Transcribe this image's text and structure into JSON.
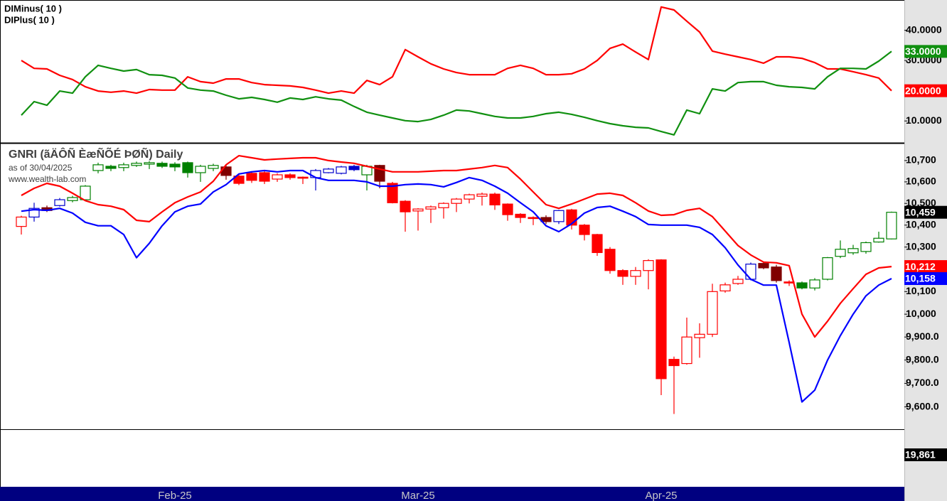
{
  "chart_data": [
    {
      "type": "line",
      "ylim": [
        3,
        50
      ],
      "yticks": [
        {
          "value": 40,
          "label": "40.0000"
        },
        {
          "value": 30,
          "label": "30.0000"
        },
        {
          "value": 20,
          "label": "20.0000"
        },
        {
          "value": 10,
          "label": "10.0000"
        }
      ],
      "series": [
        {
          "name": "DIMinus( 10 )",
          "color": "#ff0000",
          "last_label": "20.0000",
          "values": [
            30.0,
            27.4,
            27.2,
            25.1,
            23.7,
            21.3,
            19.9,
            19.5,
            19.9,
            19.2,
            20.4,
            20.2,
            20.2,
            24.6,
            23.0,
            22.5,
            23.9,
            23.9,
            22.7,
            22.0,
            21.8,
            21.6,
            21.1,
            20.2,
            19.2,
            19.9,
            19.2,
            23.4,
            22.0,
            24.6,
            33.6,
            31.2,
            28.9,
            27.2,
            26.0,
            25.3,
            25.3,
            25.3,
            27.4,
            28.4,
            27.4,
            25.3,
            25.3,
            25.6,
            27.2,
            30.0,
            34.0,
            35.4,
            32.8,
            30.3,
            47.7,
            46.7,
            43.0,
            39.4,
            33.1,
            32.1,
            31.2,
            30.3,
            29.1,
            31.2,
            31.2,
            30.7,
            29.3,
            27.2,
            27.2,
            26.3,
            25.3,
            24.2,
            20.0
          ]
        },
        {
          "name": "DIPlus( 10 )",
          "color": "#109010",
          "last_label": "33.0000",
          "values": [
            11.9,
            16.4,
            15.2,
            19.9,
            19.2,
            24.6,
            28.4,
            27.4,
            26.5,
            27.0,
            25.3,
            25.1,
            24.2,
            20.9,
            20.2,
            19.9,
            18.5,
            17.3,
            17.8,
            17.1,
            16.2,
            17.6,
            17.1,
            18.0,
            17.3,
            16.9,
            14.8,
            12.9,
            11.9,
            11.0,
            10.1,
            9.8,
            10.5,
            11.9,
            13.6,
            13.3,
            12.4,
            11.5,
            11.0,
            11.0,
            11.5,
            12.4,
            12.9,
            12.2,
            11.2,
            10.1,
            9.1,
            8.4,
            7.9,
            7.7,
            6.5,
            5.4,
            13.6,
            12.4,
            20.6,
            19.9,
            22.7,
            23.0,
            23.0,
            21.8,
            21.3,
            21.1,
            20.6,
            24.6,
            27.4,
            27.4,
            27.2,
            29.8,
            33.0
          ]
        }
      ]
    },
    {
      "type": "candlestick",
      "title": "GNRI (ãÄÔÑ ÈæÑÕÉ ÞØÑ) Daily",
      "subtitle": "as of 30/04/2025",
      "annotation": "www.wealth-lab.com",
      "log": true,
      "ylim": [
        9506,
        10777
      ],
      "yticks": [
        {
          "value": 10700,
          "label": "10,700"
        },
        {
          "value": 10600,
          "label": "10,600"
        },
        {
          "value": 10500,
          "label": "10,500"
        },
        {
          "value": 10400,
          "label": "10,400"
        },
        {
          "value": 10300,
          "label": "10,300"
        },
        {
          "value": 10200,
          "label": "10,200"
        },
        {
          "value": 10100,
          "label": "10,100"
        },
        {
          "value": 10000,
          "label": "10,000"
        },
        {
          "value": 9900,
          "label": "9,900.0"
        },
        {
          "value": 9800,
          "label": "9,800.0"
        },
        {
          "value": 9700,
          "label": "9,700.0"
        },
        {
          "value": 9600,
          "label": "9,600.0"
        }
      ],
      "categories": [
        null,
        null,
        null,
        null,
        null,
        null,
        null,
        null,
        null,
        null,
        null,
        null,
        "Feb-25",
        null,
        null,
        null,
        null,
        null,
        null,
        null,
        null,
        null,
        null,
        null,
        null,
        null,
        null,
        null,
        null,
        null,
        null,
        "Mar-25",
        null,
        null,
        null,
        null,
        null,
        null,
        null,
        null,
        null,
        null,
        null,
        null,
        null,
        null,
        null,
        null,
        null,
        null,
        "Apr-25",
        null,
        null,
        null,
        null,
        null,
        null,
        null,
        null,
        null,
        null,
        null,
        null,
        null,
        null,
        null,
        null,
        null,
        null
      ],
      "open": [
        10394,
        10437,
        10480,
        10490,
        10513,
        10517,
        10653,
        10673,
        10667,
        10677,
        10683,
        10687,
        10683,
        10690,
        10643,
        10663,
        10670,
        10627,
        10640,
        10643,
        10613,
        10633,
        10622,
        10620,
        10643,
        10640,
        10673,
        10633,
        10677,
        10593,
        10510,
        10465,
        10474,
        10480,
        10500,
        10520,
        10533,
        10543,
        10497,
        10450,
        10435,
        10435,
        10416,
        10470,
        10400,
        10357,
        10290,
        10194,
        10168,
        10194,
        10242,
        9803,
        9785,
        9897,
        9912,
        10103,
        10136,
        10155,
        10226,
        10210,
        10143,
        10139,
        10116,
        10155,
        10258,
        10274,
        10280,
        10323,
        10337
      ],
      "high": [
        10443,
        10503,
        10490,
        10525,
        10535,
        10585,
        10690,
        10680,
        10690,
        10695,
        10697,
        10695,
        10692,
        10695,
        10680,
        10685,
        10680,
        10640,
        10650,
        10650,
        10640,
        10640,
        10625,
        10660,
        10665,
        10675,
        10680,
        10680,
        10680,
        10600,
        10515,
        10478,
        10490,
        10505,
        10525,
        10545,
        10550,
        10550,
        10500,
        10455,
        10440,
        10445,
        10470,
        10475,
        10405,
        10360,
        10300,
        10200,
        10210,
        10245,
        10245,
        9815,
        9985,
        9960,
        10135,
        10140,
        10170,
        10230,
        10232,
        10220,
        10150,
        10145,
        10160,
        10255,
        10330,
        10310,
        10325,
        10370,
        10462
      ],
      "low": [
        10357,
        10416,
        10460,
        10485,
        10505,
        10515,
        10640,
        10650,
        10650,
        10670,
        10660,
        10665,
        10650,
        10620,
        10600,
        10650,
        10610,
        10585,
        10595,
        10590,
        10600,
        10610,
        10590,
        10560,
        10640,
        10635,
        10650,
        10560,
        10570,
        10500,
        10370,
        10375,
        10410,
        10430,
        10460,
        10500,
        10490,
        10470,
        10420,
        10410,
        10400,
        10405,
        10405,
        10380,
        10330,
        10260,
        10180,
        10130,
        10130,
        10110,
        9650,
        9570,
        9780,
        9810,
        9900,
        10095,
        10130,
        10150,
        10200,
        10140,
        10125,
        10110,
        10105,
        10150,
        10250,
        10265,
        10270,
        10320,
        10335
      ],
      "close": [
        10437,
        10477,
        10467,
        10517,
        10527,
        10580,
        10680,
        10663,
        10680,
        10687,
        10690,
        10673,
        10670,
        10643,
        10673,
        10677,
        10630,
        10593,
        10607,
        10603,
        10633,
        10620,
        10618,
        10653,
        10660,
        10670,
        10657,
        10673,
        10603,
        10503,
        10461,
        10474,
        10484,
        10500,
        10520,
        10540,
        10543,
        10493,
        10448,
        10435,
        10432,
        10416,
        10467,
        10400,
        10357,
        10275,
        10194,
        10168,
        10194,
        10239,
        9720,
        9776,
        9900,
        9912,
        10100,
        10130,
        10155,
        10223,
        10206,
        10149,
        10140,
        10116,
        10152,
        10252,
        10290,
        10293,
        10320,
        10340,
        10459
      ],
      "close_label": "10,459",
      "close_label_color": "#000000",
      "colors": [
        "#ff0000",
        "#0000cc",
        "#800000",
        "#0000cc",
        "#008000",
        "#008000",
        "#008000",
        "#008000",
        "#008000",
        "#008000",
        "#008000",
        "#008000",
        "#008000",
        "#008000",
        "#008000",
        "#008000",
        "#800000",
        "#ff0000",
        "#ff0000",
        "#ff0000",
        "#ff0000",
        "#ff0000",
        "#ff0000",
        "#0000cc",
        "#0000cc",
        "#0000cc",
        "#0000cc",
        "#008000",
        "#800000",
        "#ff0000",
        "#ff0000",
        "#ff0000",
        "#ff0000",
        "#ff0000",
        "#ff0000",
        "#ff0000",
        "#ff0000",
        "#ff0000",
        "#ff0000",
        "#ff0000",
        "#ff0000",
        "#800000",
        "#0000cc",
        "#ff0000",
        "#ff0000",
        "#ff0000",
        "#ff0000",
        "#ff0000",
        "#ff0000",
        "#ff0000",
        "#ff0000",
        "#ff0000",
        "#ff0000",
        "#ff0000",
        "#ff0000",
        "#ff0000",
        "#ff0000",
        "#0000cc",
        "#800000",
        "#800000",
        "#ff0000",
        "#008000",
        "#008000",
        "#008000",
        "#008000",
        "#008000",
        "#008000",
        "#008000",
        "#008000"
      ],
      "series": [
        {
          "color": "#ff0000",
          "last_label": "10,212",
          "values": [
            10537,
            10570,
            10593,
            10580,
            10547,
            10513,
            10494,
            10487,
            10471,
            10422,
            10416,
            10461,
            10503,
            10530,
            10553,
            10603,
            10680,
            10723,
            10713,
            10703,
            10707,
            10710,
            10713,
            10713,
            10700,
            10693,
            10687,
            10673,
            10660,
            10647,
            10647,
            10647,
            10650,
            10653,
            10653,
            10660,
            10667,
            10677,
            10667,
            10613,
            10553,
            10494,
            10477,
            10497,
            10520,
            10543,
            10547,
            10537,
            10503,
            10465,
            10445,
            10448,
            10468,
            10477,
            10439,
            10373,
            10307,
            10264,
            10232,
            10229,
            10216,
            10000,
            9900,
            9969,
            10048,
            10113,
            10177,
            10206,
            10212
          ]
        },
        {
          "color": "#0000ff",
          "last_label": "10,158",
          "values": [
            10464,
            10471,
            10468,
            10477,
            10455,
            10413,
            10397,
            10397,
            10357,
            10252,
            10317,
            10397,
            10461,
            10487,
            10497,
            10553,
            10587,
            10637,
            10647,
            10653,
            10647,
            10653,
            10653,
            10620,
            10607,
            10607,
            10607,
            10600,
            10580,
            10580,
            10587,
            10590,
            10587,
            10577,
            10597,
            10620,
            10607,
            10580,
            10547,
            10503,
            10461,
            10397,
            10370,
            10406,
            10455,
            10481,
            10487,
            10464,
            10439,
            10403,
            10400,
            10400,
            10400,
            10390,
            10357,
            10297,
            10219,
            10155,
            10129,
            10129,
            9876,
            9621,
            9671,
            9800,
            9906,
            10000,
            10081,
            10129,
            10158
          ]
        }
      ]
    },
    {
      "type": "volume",
      "last_label": "19,861",
      "last_label_color": "#000000"
    }
  ]
}
